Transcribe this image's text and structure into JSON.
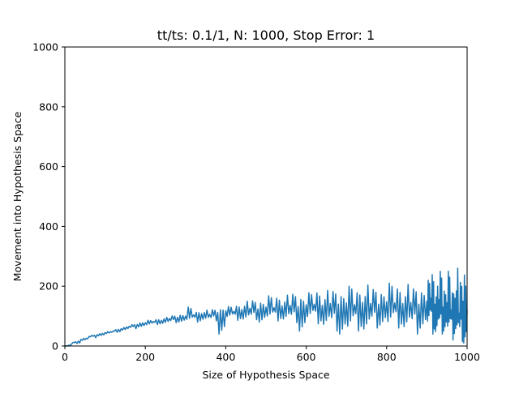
{
  "chart_data": {
    "type": "line",
    "title": "tt/ts: 0.1/1, N: 1000, Stop Error: 1",
    "xlabel": "Size of Hypothesis Space",
    "ylabel": "Movement into Hypothesis Space",
    "xlim": [
      0,
      1000
    ],
    "ylim": [
      0,
      1000
    ],
    "xticks": [
      0,
      200,
      400,
      600,
      800,
      1000
    ],
    "yticks": [
      0,
      200,
      400,
      600,
      800,
      1000
    ],
    "grid": false,
    "legend": "none",
    "series": [
      {
        "color": "#1f77b4",
        "x": [
          0,
          20,
          40,
          60,
          80,
          100,
          120,
          140,
          160,
          180,
          200,
          220,
          240,
          260,
          280,
          300,
          320,
          340,
          360,
          380,
          400,
          420,
          440,
          460,
          480,
          500,
          520,
          540,
          560,
          580,
          600,
          620,
          640,
          660,
          680,
          700,
          720,
          740,
          760,
          780,
          800,
          820,
          840,
          860,
          880,
          900,
          910,
          920,
          930,
          940,
          950,
          960,
          970,
          980,
          990,
          1000
        ],
        "y": [
          0,
          12,
          22,
          32,
          38,
          45,
          50,
          58,
          66,
          72,
          78,
          82,
          86,
          92,
          96,
          100,
          104,
          108,
          106,
          112,
          118,
          116,
          122,
          126,
          124,
          130,
          128,
          134,
          136,
          132,
          138,
          140,
          136,
          142,
          140,
          144,
          138,
          146,
          142,
          140,
          148,
          144,
          142,
          146,
          140,
          150,
          160,
          140,
          155,
          130,
          145,
          120,
          160,
          110,
          150,
          120
        ],
        "points_min": [
          0,
          8,
          18,
          28,
          34,
          40,
          46,
          52,
          58,
          64,
          68,
          72,
          74,
          78,
          80,
          84,
          80,
          86,
          84,
          40,
          90,
          86,
          84,
          88,
          80,
          86,
          84,
          82,
          78,
          50,
          80,
          74,
          60,
          50,
          40,
          30,
          50,
          40,
          60,
          70,
          50,
          60,
          50,
          40,
          60,
          50,
          40,
          30,
          40,
          50,
          30,
          20,
          40,
          15,
          10,
          20
        ],
        "points_max": [
          0,
          14,
          26,
          36,
          42,
          48,
          56,
          64,
          72,
          80,
          86,
          90,
          96,
          102,
          108,
          130,
          116,
          120,
          124,
          128,
          132,
          140,
          150,
          156,
          160,
          168,
          174,
          170,
          180,
          176,
          178,
          196,
          186,
          190,
          188,
          200,
          196,
          204,
          198,
          200,
          210,
          214,
          206,
          200,
          210,
          220,
          280,
          200,
          270,
          230,
          250,
          200,
          260,
          230,
          330,
          240
        ]
      }
    ]
  }
}
